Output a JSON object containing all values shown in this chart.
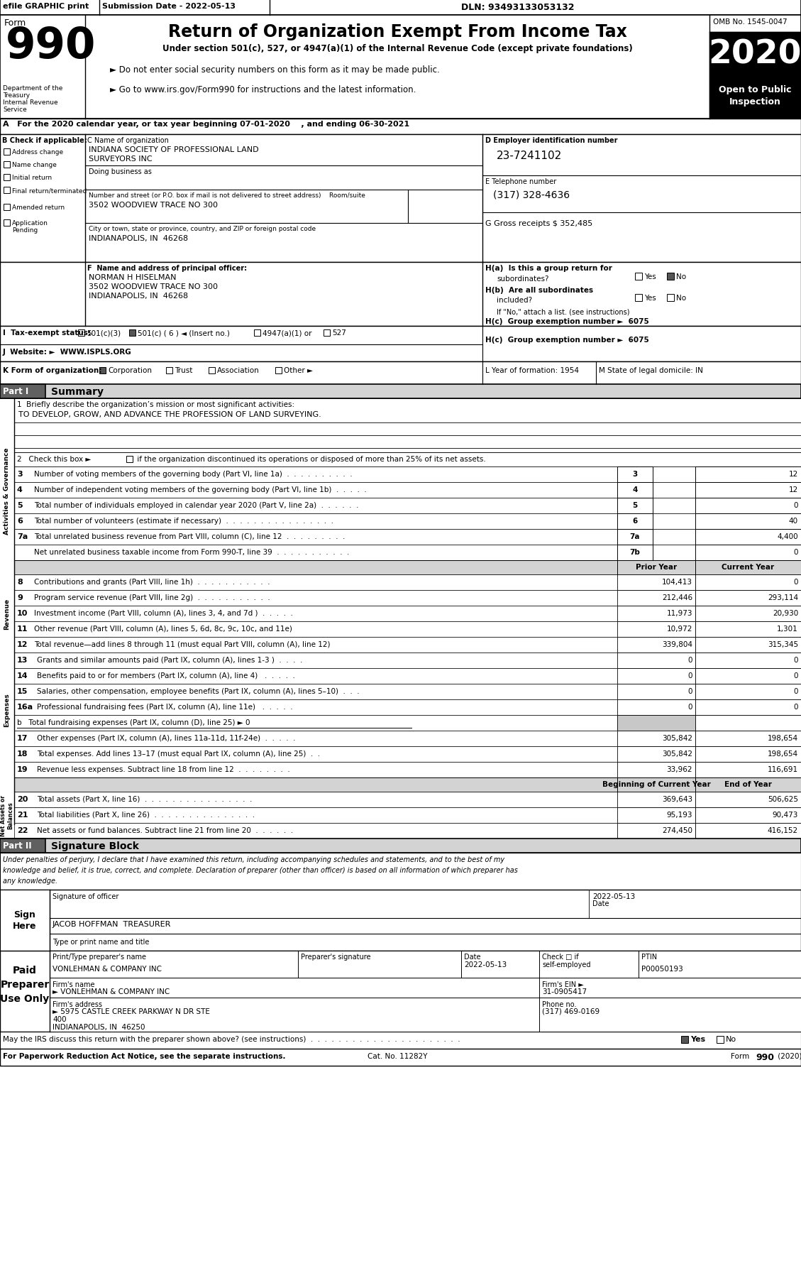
{
  "efile_bar": "efile GRAPHIC print",
  "submission_date": "Submission Date - 2022-05-13",
  "dln": "DLN: 93493133053132",
  "form_num": "990",
  "title": "Return of Organization Exempt From Income Tax",
  "subtitle1": "Under section 501(c), 527, or 4947(a)(1) of the Internal Revenue Code (except private foundations)",
  "subtitle2": "► Do not enter social security numbers on this form as it may be made public.",
  "subtitle3": "► Go to www.irs.gov/Form990 for instructions and the latest information.",
  "dept": "Department of the\nTreasury\nInternal Revenue\nService",
  "omb": "OMB No. 1545-0047",
  "year": "2020",
  "open_public": "Open to Public\nInspection",
  "line_A": "A   For the 2020 calendar year, or tax year beginning 07-01-2020    , and ending 06-30-2021",
  "check_B": "B Check if applicable:",
  "checks": [
    "Address change",
    "Name change",
    "Initial return",
    "Final return/terminated",
    "Amended return",
    "Application\nPending"
  ],
  "C_label": "C Name of organization",
  "org1": "INDIANA SOCIETY OF PROFESSIONAL LAND",
  "org2": "SURVEYORS INC",
  "dba": "Doing business as",
  "street_lbl": "Number and street (or P.O. box if mail is not delivered to street address)    Room/suite",
  "street": "3502 WOODVIEW TRACE NO 300",
  "city_lbl": "City or town, state or province, country, and ZIP or foreign postal code",
  "city": "INDIANAPOLIS, IN  46268",
  "D_lbl": "D Employer identification number",
  "ein": "23-7241102",
  "E_lbl": "E Telephone number",
  "phone": "(317) 328-4636",
  "G_lbl": "G Gross receipts $ 352,485",
  "F_lbl": "F  Name and address of principal officer:",
  "officer": "NORMAN H HISELMAN",
  "off_addr": "3502 WOODVIEW TRACE NO 300",
  "off_city": "INDIANAPOLIS, IN  46268",
  "Ha": "H(a)  Is this a group return for",
  "Ha_sub": "subordinates?",
  "Hb": "H(b)  Are all subordinates",
  "Hb_sub": "included?",
  "Hc_note": "If \"No,\" attach a list. (see instructions)",
  "Hc": "H(c)  Group exemption number ►  6075",
  "I_lbl": "I  Tax-exempt status:",
  "J_lbl": "J  Website: ►  WWW.ISPLS.ORG",
  "K_lbl": "K Form of organization:",
  "L_lbl": "L Year of formation: 1954",
  "M_lbl": "M State of legal domicile: IN",
  "p1_title": "Summary",
  "mission_lbl": "1  Briefly describe the organization’s mission or most significant activities:",
  "mission": "TO DEVELOP, GROW, AND ADVANCE THE PROFESSION OF LAND SURVEYING.",
  "line2_txt": "2   Check this box ►",
  "line2_rest": " if the organization discontinued its operations or disposed of more than 25% of its net assets.",
  "lines_3_7": [
    [
      "3",
      "Number of voting members of the governing body (Part VI, line 1a)  .  .  .  .  .  .  .  .  .  .",
      "3",
      "12"
    ],
    [
      "4",
      "Number of independent voting members of the governing body (Part VI, line 1b)  .  .  .  .  .",
      "4",
      "12"
    ],
    [
      "5",
      "Total number of individuals employed in calendar year 2020 (Part V, line 2a)  .  .  .  .  .  .",
      "5",
      "0"
    ],
    [
      "6",
      "Total number of volunteers (estimate if necessary)  .  .  .  .  .  .  .  .  .  .  .  .  .  .  .  .",
      "6",
      "40"
    ],
    [
      "7a",
      "Total unrelated business revenue from Part VIII, column (C), line 12  .  .  .  .  .  .  .  .  .",
      "7a",
      "4,400"
    ],
    [
      "",
      "Net unrelated business taxable income from Form 990-T, line 39  .  .  .  .  .  .  .  .  .  .  .",
      "7b",
      "0"
    ]
  ],
  "rev_lines": [
    [
      "8",
      "Contributions and grants (Part VIII, line 1h)  .  .  .  .  .  .  .  .  .  .  .",
      "104,413",
      "0"
    ],
    [
      "9",
      "Program service revenue (Part VIII, line 2g)  .  .  .  .  .  .  .  .  .  .  .",
      "212,446",
      "293,114"
    ],
    [
      "10",
      "Investment income (Part VIII, column (A), lines 3, 4, and 7d )  .  .  .  .  .",
      "11,973",
      "20,930"
    ],
    [
      "11",
      "Other revenue (Part VIII, column (A), lines 5, 6d, 8c, 9c, 10c, and 11e)",
      "10,972",
      "1,301"
    ],
    [
      "12",
      "Total revenue—add lines 8 through 11 (must equal Part VIII, column (A), line 12)",
      "339,804",
      "315,345"
    ]
  ],
  "exp_lines": [
    [
      "13",
      "Grants and similar amounts paid (Part IX, column (A), lines 1-3 )  .  .  .  .",
      "0",
      "0"
    ],
    [
      "14",
      "Benefits paid to or for members (Part IX, column (A), line 4)   .  .  .  .  .",
      "0",
      "0"
    ],
    [
      "15",
      "Salaries, other compensation, employee benefits (Part IX, column (A), lines 5–10)  .  .  .",
      "0",
      "0"
    ],
    [
      "16a",
      "Professional fundraising fees (Part IX, column (A), line 11e)   .  .  .  .  .",
      "0",
      "0"
    ]
  ],
  "line16b": "b   Total fundraising expenses (Part IX, column (D), line 25) ► 0",
  "exp_lines2": [
    [
      "17",
      "Other expenses (Part IX, column (A), lines 11a-11d, 11f-24e)  .  .  .  .  .",
      "305,842",
      "198,654"
    ],
    [
      "18",
      "Total expenses. Add lines 13–17 (must equal Part IX, column (A), line 25)  .  .",
      "305,842",
      "198,654"
    ],
    [
      "19",
      "Revenue less expenses. Subtract line 18 from line 12  .  .  .  .  .  .  .  .",
      "33,962",
      "116,691"
    ]
  ],
  "asset_lines": [
    [
      "20",
      "Total assets (Part X, line 16)  .  .  .  .  .  .  .  .  .  .  .  .  .  .  .  .",
      "369,643",
      "506,625"
    ],
    [
      "21",
      "Total liabilities (Part X, line 26)  .  .  .  .  .  .  .  .  .  .  .  .  .  .  .",
      "95,193",
      "90,473"
    ],
    [
      "22",
      "Net assets or fund balances. Subtract line 21 from line 20  .  .  .  .  .  .",
      "274,450",
      "416,152"
    ]
  ],
  "p2_title": "Signature Block",
  "declaration": "Under penalties of perjury, I declare that I have examined this return, including accompanying schedules and statements, and to the best of my\nknowledge and belief, it is true, correct, and complete. Declaration of preparer (other than officer) is based on all information of which preparer has\nany knowledge.",
  "sig_date": "2022-05-13",
  "officer_name": "JACOB HOFFMAN  TREASURER",
  "prep_name": "VONLEHMAN & COMPANY INC",
  "prep_date": "2022-05-13",
  "prep_ptin": "P00050193",
  "firm_name": "VONLEHMAN & COMPANY INC",
  "firm_ein": "31-0905417",
  "firm_addr1": "5975 CASTLE CREEK PARKWAY N DR STE",
  "firm_addr2": "400",
  "firm_addr3": "INDIANAPOLIS, IN  46250",
  "firm_phone": "(317) 469-0169",
  "bottom1": "May the IRS discuss this return with the preparer shown above? (see instructions)  .  .  .  .  .  .  .  .  .  .  .  .  .  .  .  .  .  .  .  .  .  .",
  "bottom2": "For Paperwork Reduction Act Notice, see the separate instructions.",
  "cat_no": "Cat. No. 11282Y",
  "footer": "Form 990 (2020)"
}
